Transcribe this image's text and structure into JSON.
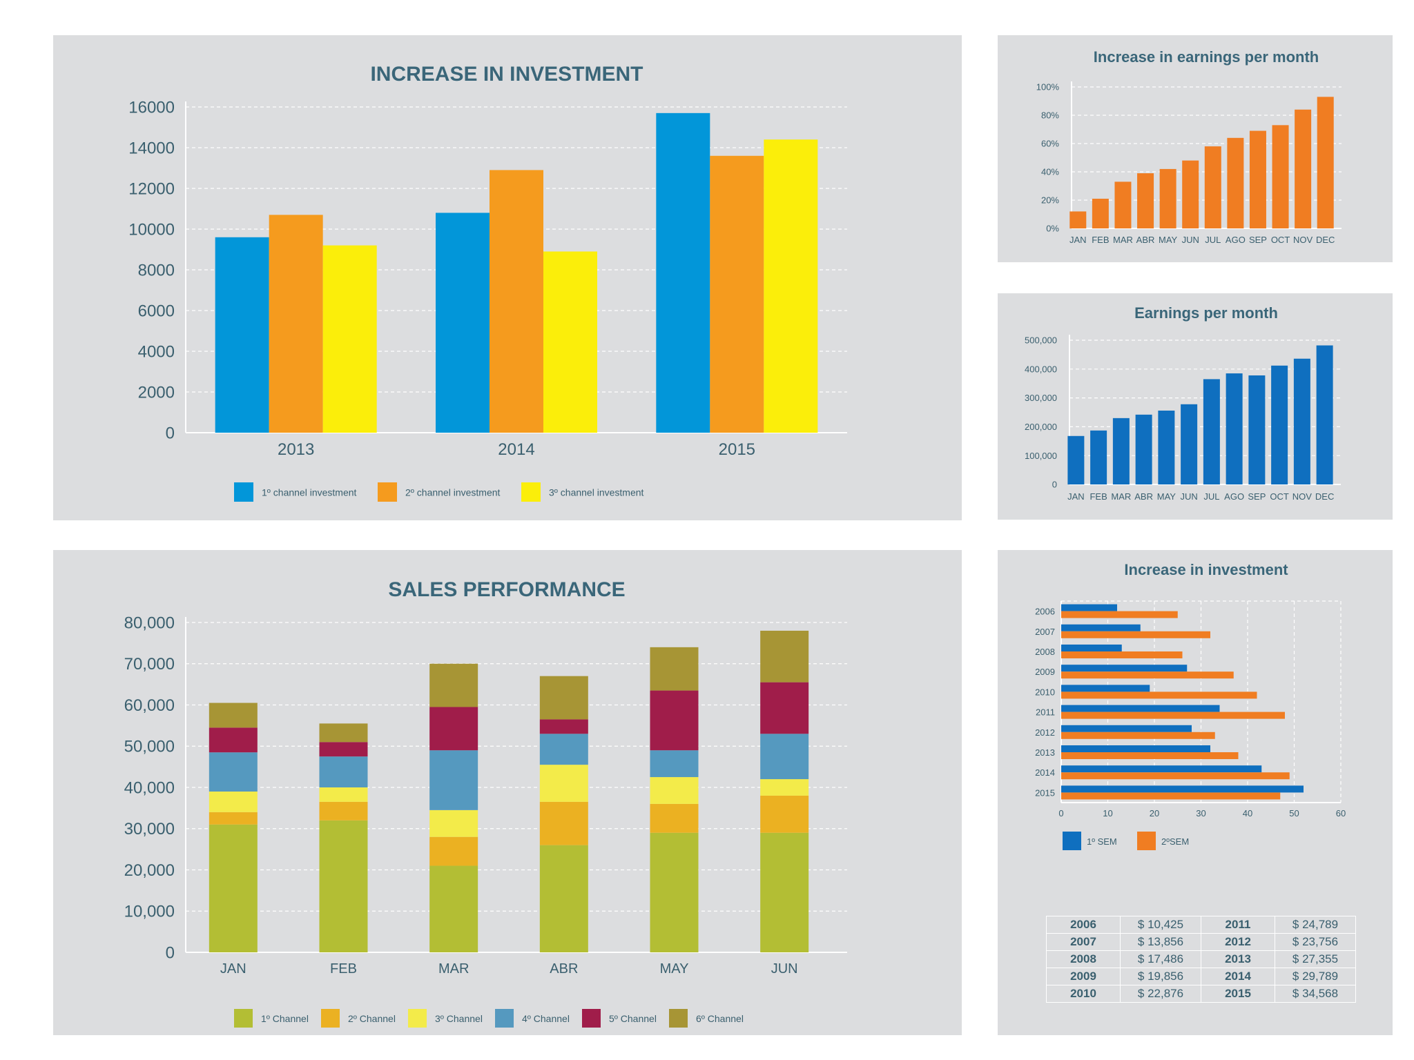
{
  "colors": {
    "panel_bg": "#dcdddf",
    "title": "#3a6679",
    "text": "#3a5f6e",
    "ch1_blue": "#0296d9",
    "ch2_orange": "#f59b1e",
    "ch3_yellow": "#fbee0a",
    "bar_orange": "#f07d22",
    "bar_blue": "#0f6fbf"
  },
  "chart_data": [
    {
      "id": "increase_in_investment",
      "type": "bar",
      "title": "INCREASE IN INVESTMENT",
      "categories": [
        "2013",
        "2014",
        "2015"
      ],
      "series": [
        {
          "name": "1º channel investment",
          "values": [
            9600,
            10800,
            15700
          ],
          "color": "#0296d9"
        },
        {
          "name": "2º channel investment",
          "values": [
            10700,
            12900,
            13600
          ],
          "color": "#f59b1e"
        },
        {
          "name": "3º channel investment",
          "values": [
            9200,
            8900,
            14400
          ],
          "color": "#fbee0a"
        }
      ],
      "yticks": [
        "0",
        "2000",
        "4000",
        "6000",
        "8000",
        "10000",
        "12000",
        "14000",
        "16000"
      ],
      "ylim": [
        0,
        16000
      ],
      "grid": true,
      "legend": "bottom"
    },
    {
      "id": "increase_in_earnings_per_month",
      "type": "bar",
      "title": "Increase in earnings per month",
      "categories": [
        "JAN",
        "FEB",
        "MAR",
        "ABR",
        "MAY",
        "JUN",
        "JUL",
        "AGO",
        "SEP",
        "OCT",
        "NOV",
        "DEC"
      ],
      "values": [
        12,
        21,
        33,
        39,
        42,
        48,
        58,
        64,
        69,
        73,
        84,
        93
      ],
      "yticks": [
        "0%",
        "20%",
        "40%",
        "60%",
        "80%",
        "100%"
      ],
      "ylim": [
        0,
        100
      ],
      "color": "#f07d22",
      "grid": true
    },
    {
      "id": "earnings_per_month",
      "type": "bar",
      "title": "Earnings per month",
      "categories": [
        "JAN",
        "FEB",
        "MAR",
        "ABR",
        "MAY",
        "JUN",
        "JUL",
        "AGO",
        "SEP",
        "OCT",
        "NOV",
        "DEC"
      ],
      "values": [
        168000,
        187000,
        230000,
        242000,
        256000,
        278000,
        365000,
        385000,
        378000,
        412000,
        436000,
        482000
      ],
      "yticks": [
        "0",
        "100,000",
        "200,000",
        "300,000",
        "400,000",
        "500,000"
      ],
      "ylim": [
        0,
        500000
      ],
      "color": "#0f6fbf",
      "grid": true
    },
    {
      "id": "sales_performance",
      "type": "bar",
      "stacked": true,
      "title": "SALES PERFORMANCE",
      "categories": [
        "JAN",
        "FEB",
        "MAR",
        "ABR",
        "MAY",
        "JUN"
      ],
      "series": [
        {
          "name": "1º Channel",
          "values": [
            31000,
            32000,
            21000,
            26000,
            29000,
            29000
          ],
          "color": "#b3be34"
        },
        {
          "name": "2º Channel",
          "values": [
            3000,
            4500,
            7000,
            10500,
            7000,
            9000
          ],
          "color": "#ebb122"
        },
        {
          "name": "3º Channel",
          "values": [
            5000,
            3500,
            6500,
            9000,
            6500,
            4000
          ],
          "color": "#f3eb4a"
        },
        {
          "name": "4º Channel",
          "values": [
            9500,
            7500,
            14500,
            7500,
            6500,
            11000
          ],
          "color": "#5599bf"
        },
        {
          "name": "5º Channel",
          "values": [
            6000,
            3500,
            10500,
            3500,
            14500,
            12500
          ],
          "color": "#a01d4a"
        },
        {
          "name": "6º Channel",
          "values": [
            6000,
            4500,
            10500,
            10500,
            10500,
            12500
          ],
          "color": "#a79535"
        }
      ],
      "yticks": [
        "0",
        "10,000",
        "20,000",
        "30,000",
        "40,000",
        "50,000",
        "60,000",
        "70,000",
        "80,000"
      ],
      "ylim": [
        0,
        80000
      ],
      "grid": true,
      "legend": "bottom"
    },
    {
      "id": "increase_in_investment_semester",
      "type": "bar",
      "orientation": "horizontal",
      "title": "Increase in investment",
      "categories": [
        "2006",
        "2007",
        "2008",
        "2009",
        "2010",
        "2011",
        "2012",
        "2013",
        "2014",
        "2015"
      ],
      "series": [
        {
          "name": "1º SEM",
          "values": [
            12,
            17,
            13,
            27,
            19,
            34,
            28,
            32,
            43,
            52
          ],
          "color": "#0f6fbf"
        },
        {
          "name": "2ºSEM",
          "values": [
            25,
            32,
            26,
            37,
            42,
            48,
            33,
            38,
            49,
            47
          ],
          "color": "#f07d22"
        }
      ],
      "xticks": [
        "0",
        "10",
        "20",
        "30",
        "40",
        "50",
        "60"
      ],
      "xlim": [
        0,
        60
      ],
      "grid": true,
      "legend": "bottom"
    }
  ],
  "table": {
    "rows": [
      {
        "year_a": "2006",
        "amount_a": "$ 10,425",
        "year_b": "2011",
        "amount_b": "$ 24,789"
      },
      {
        "year_a": "2007",
        "amount_a": "$ 13,856",
        "year_b": "2012",
        "amount_b": "$ 23,756"
      },
      {
        "year_a": "2008",
        "amount_a": "$ 17,486",
        "year_b": "2013",
        "amount_b": "$ 27,355"
      },
      {
        "year_a": "2009",
        "amount_a": "$ 19,856",
        "year_b": "2014",
        "amount_b": "$ 29,789"
      },
      {
        "year_a": "2010",
        "amount_a": "$ 22,876",
        "year_b": "2015",
        "amount_b": "$ 34,568"
      }
    ]
  }
}
